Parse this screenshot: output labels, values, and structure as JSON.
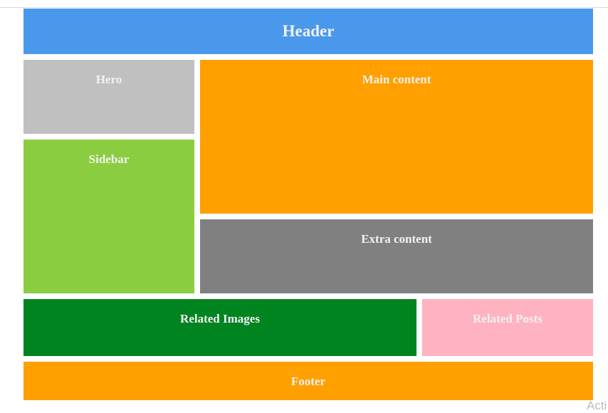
{
  "layout": {
    "header": "Header",
    "hero": "Hero",
    "main_content": "Main content",
    "sidebar": "Sidebar",
    "extra_content": "Extra content",
    "related_images": "Related Images",
    "related_posts": "Related Posts",
    "footer": "Footer"
  },
  "watermark": "Acti",
  "colors": {
    "header": "#4a98ec",
    "hero": "#c0c0c0",
    "main_content": "#ffa000",
    "sidebar": "#8bcd40",
    "extra_content": "#808080",
    "related_images": "#00841f",
    "related_posts": "#ffb2bf",
    "footer": "#ffa000",
    "label_text": "#f2f2f2"
  }
}
